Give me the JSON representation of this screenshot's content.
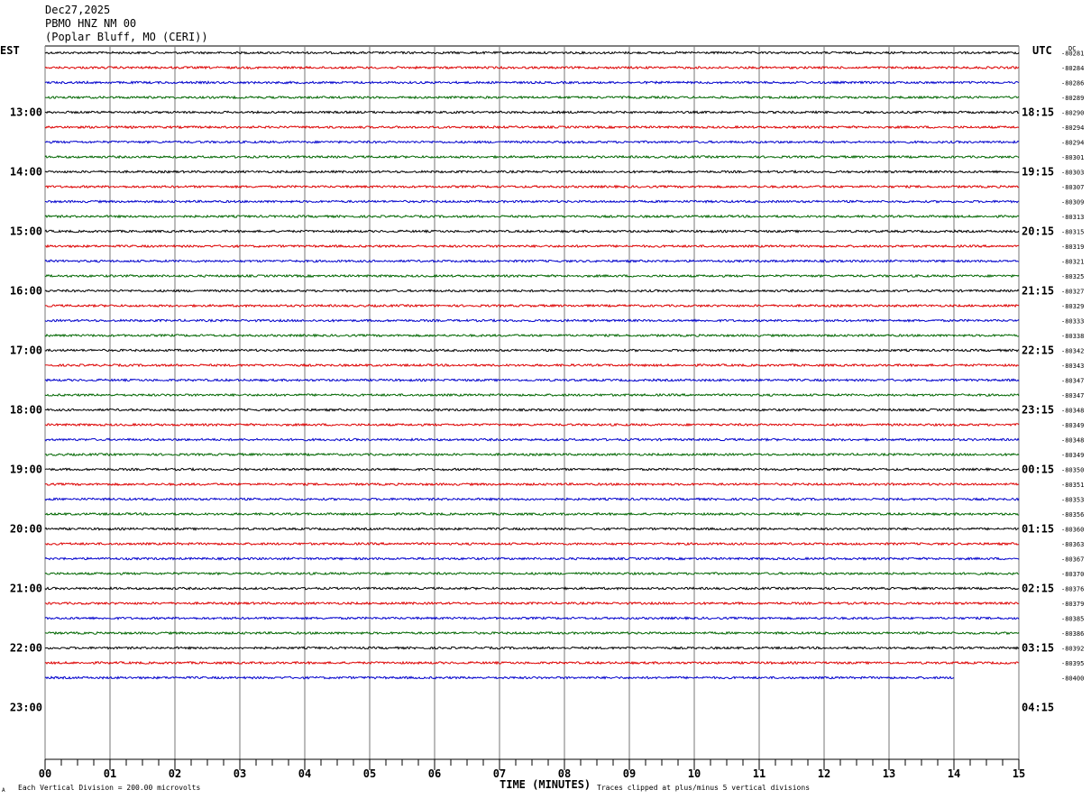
{
  "header": {
    "date": "Dec27,2025",
    "station": "PBMO HNZ NM 00",
    "location": "(Poplar Bluff, MO (CERI))"
  },
  "labels": {
    "left_zone": "EST",
    "right_zone": "UTC",
    "dc": "DC",
    "xlabel": "TIME (MINUTES)",
    "scale_note": "Each Vertical Division =  200.00 microvolts",
    "clip_note": "Traces clipped at plus/minus 5 vertical divisions",
    "corner_mark": "A"
  },
  "chart_data": {
    "type": "line",
    "title": "PBMO HNZ NM 00",
    "xlabel": "TIME (MINUTES)",
    "xlim": [
      0,
      15
    ],
    "x_ticks": [
      "00",
      "01",
      "02",
      "03",
      "04",
      "05",
      "06",
      "07",
      "08",
      "09",
      "10",
      "11",
      "12",
      "13",
      "14",
      "15"
    ],
    "left_hour_labels": [
      "13:00",
      "14:00",
      "15:00",
      "16:00",
      "17:00",
      "18:00",
      "19:00",
      "20:00",
      "21:00",
      "22:00",
      "23:00"
    ],
    "right_hour_labels": [
      "18:15",
      "19:15",
      "20:15",
      "21:15",
      "22:15",
      "23:15",
      "00:15",
      "01:15",
      "02:15",
      "03:15",
      "04:15"
    ],
    "trace_colors": [
      "#000000",
      "#dd0000",
      "#0000cc",
      "#006600"
    ],
    "dc_offsets": [
      "-80281",
      "-80284",
      "-80286",
      "-80289",
      "-80290",
      "-80294",
      "-80294",
      "-80301",
      "-80303",
      "-80307",
      "-80309",
      "-80313",
      "-80315",
      "-80319",
      "-80321",
      "-80325",
      "-80327",
      "-80329",
      "-80333",
      "-80338",
      "-80342",
      "-80343",
      "-80347",
      "-80347",
      "-80348",
      "-80349",
      "-80348",
      "-80349",
      "-80350",
      "-80351",
      "-80353",
      "-80356",
      "-80360",
      "-80363",
      "-80367",
      "-80370",
      "-80376",
      "-80379",
      "-80385",
      "-80386",
      "-80392",
      "-80395",
      "-80400"
    ],
    "traces_total": 43,
    "last_trace_end_minute": 14.0,
    "grid": true
  }
}
